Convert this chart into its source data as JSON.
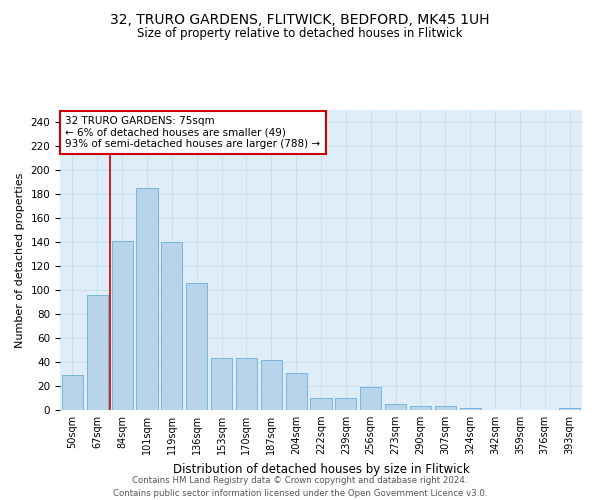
{
  "title_line1": "32, TRURO GARDENS, FLITWICK, BEDFORD, MK45 1UH",
  "title_line2": "Size of property relative to detached houses in Flitwick",
  "xlabel": "Distribution of detached houses by size in Flitwick",
  "ylabel": "Number of detached properties",
  "footer_line1": "Contains HM Land Registry data © Crown copyright and database right 2024.",
  "footer_line2": "Contains public sector information licensed under the Open Government Licence v3.0.",
  "bar_labels": [
    "50sqm",
    "67sqm",
    "84sqm",
    "101sqm",
    "119sqm",
    "136sqm",
    "153sqm",
    "170sqm",
    "187sqm",
    "204sqm",
    "222sqm",
    "239sqm",
    "256sqm",
    "273sqm",
    "290sqm",
    "307sqm",
    "324sqm",
    "342sqm",
    "359sqm",
    "376sqm",
    "393sqm"
  ],
  "bar_values": [
    29,
    96,
    141,
    185,
    140,
    106,
    43,
    43,
    42,
    31,
    10,
    10,
    19,
    5,
    3,
    3,
    2,
    0,
    0,
    0,
    2
  ],
  "bar_color": "#b8d4ea",
  "bar_edge_color": "#6aaed6",
  "grid_color": "#c8dff0",
  "background_color": "#deedf8",
  "red_line_color": "#cc0000",
  "annotation_box_color": "#ffffff",
  "annotation_box_edge_color": "#cc0000",
  "property_label": "32 TRURO GARDENS: 75sqm",
  "annotation_line1": "← 6% of detached houses are smaller (49)",
  "annotation_line2": "93% of semi-detached houses are larger (788) →",
  "ylim": [
    0,
    250
  ],
  "yticks": [
    0,
    20,
    40,
    60,
    80,
    100,
    120,
    140,
    160,
    180,
    200,
    220,
    240
  ],
  "red_line_xindex": 1.5
}
